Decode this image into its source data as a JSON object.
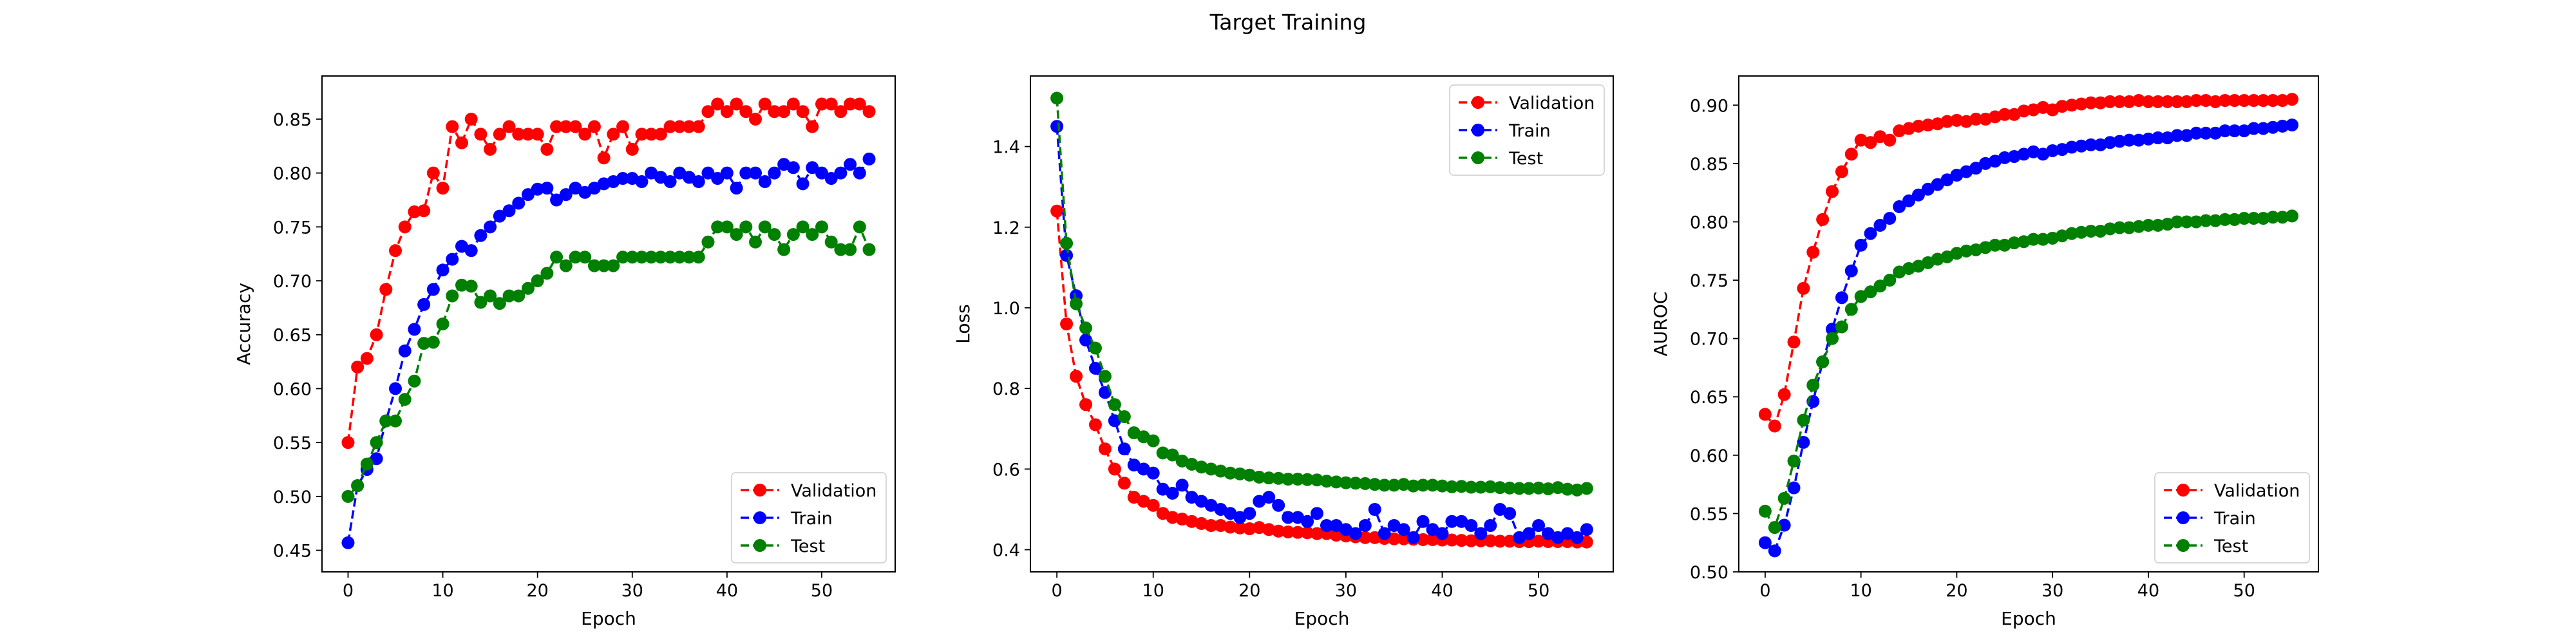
{
  "figure": {
    "title": "Target Training"
  },
  "chart_data": [
    {
      "type": "line",
      "xlabel": "Epoch",
      "ylabel": "Accuracy",
      "xlim": [
        -2.75,
        57.75
      ],
      "ylim": [
        0.43,
        0.89
      ],
      "xticks": [
        0,
        10,
        20,
        30,
        40,
        50
      ],
      "yticks": [
        0.45,
        0.5,
        0.55,
        0.6,
        0.65,
        0.7,
        0.75,
        0.8,
        0.85
      ],
      "ytick_decimals": 2,
      "legend": "lower-right",
      "series": [
        {
          "name": "Validation",
          "color": "#ff0000",
          "values": [
            0.55,
            0.62,
            0.628,
            0.65,
            0.692,
            0.728,
            0.75,
            0.764,
            0.765,
            0.8,
            0.786,
            0.843,
            0.828,
            0.85,
            0.836,
            0.822,
            0.836,
            0.843,
            0.836,
            0.836,
            0.836,
            0.822,
            0.843,
            0.843,
            0.843,
            0.836,
            0.843,
            0.814,
            0.836,
            0.843,
            0.822,
            0.836,
            0.836,
            0.836,
            0.843,
            0.843,
            0.843,
            0.843,
            0.857,
            0.864,
            0.857,
            0.864,
            0.857,
            0.85,
            0.864,
            0.857,
            0.857,
            0.864,
            0.857,
            0.843,
            0.864,
            0.864,
            0.857,
            0.864,
            0.864,
            0.857
          ]
        },
        {
          "name": "Train",
          "color": "#0000ff",
          "values": [
            0.457,
            0.51,
            0.525,
            0.535,
            0.57,
            0.6,
            0.635,
            0.655,
            0.678,
            0.692,
            0.71,
            0.72,
            0.732,
            0.728,
            0.742,
            0.75,
            0.76,
            0.765,
            0.772,
            0.78,
            0.785,
            0.786,
            0.775,
            0.78,
            0.786,
            0.782,
            0.786,
            0.79,
            0.792,
            0.795,
            0.795,
            0.792,
            0.8,
            0.796,
            0.792,
            0.8,
            0.796,
            0.792,
            0.8,
            0.795,
            0.8,
            0.786,
            0.8,
            0.8,
            0.792,
            0.8,
            0.808,
            0.805,
            0.79,
            0.805,
            0.8,
            0.795,
            0.8,
            0.808,
            0.8,
            0.813
          ]
        },
        {
          "name": "Test",
          "color": "#008000",
          "values": [
            0.5,
            0.51,
            0.53,
            0.55,
            0.57,
            0.57,
            0.59,
            0.607,
            0.642,
            0.643,
            0.66,
            0.686,
            0.696,
            0.695,
            0.68,
            0.686,
            0.679,
            0.686,
            0.686,
            0.693,
            0.7,
            0.707,
            0.722,
            0.714,
            0.722,
            0.722,
            0.714,
            0.714,
            0.714,
            0.722,
            0.722,
            0.722,
            0.722,
            0.722,
            0.722,
            0.722,
            0.722,
            0.722,
            0.736,
            0.75,
            0.75,
            0.743,
            0.75,
            0.736,
            0.75,
            0.743,
            0.729,
            0.743,
            0.75,
            0.743,
            0.75,
            0.736,
            0.729,
            0.729,
            0.75,
            0.729
          ]
        }
      ]
    },
    {
      "type": "line",
      "xlabel": "Epoch",
      "ylabel": "Loss",
      "xlim": [
        -2.75,
        57.75
      ],
      "ylim": [
        0.345,
        1.575
      ],
      "xticks": [
        0,
        10,
        20,
        30,
        40,
        50
      ],
      "yticks": [
        0.4,
        0.6,
        0.8,
        1.0,
        1.2,
        1.4
      ],
      "ytick_decimals": 1,
      "legend": "top-right",
      "series": [
        {
          "name": "Validation",
          "color": "#ff0000",
          "values": [
            1.24,
            0.96,
            0.83,
            0.76,
            0.71,
            0.65,
            0.6,
            0.565,
            0.53,
            0.52,
            0.51,
            0.49,
            0.48,
            0.476,
            0.47,
            0.465,
            0.46,
            0.46,
            0.456,
            0.454,
            0.452,
            0.455,
            0.45,
            0.446,
            0.444,
            0.443,
            0.442,
            0.44,
            0.44,
            0.436,
            0.434,
            0.432,
            0.43,
            0.43,
            0.428,
            0.427,
            0.427,
            0.426,
            0.425,
            0.425,
            0.424,
            0.424,
            0.423,
            0.422,
            0.422,
            0.422,
            0.421,
            0.421,
            0.42,
            0.42,
            0.421,
            0.42,
            0.42,
            0.42,
            0.419,
            0.419
          ]
        },
        {
          "name": "Train",
          "color": "#0000ff",
          "values": [
            1.45,
            1.13,
            1.03,
            0.92,
            0.85,
            0.79,
            0.72,
            0.65,
            0.61,
            0.6,
            0.59,
            0.55,
            0.54,
            0.56,
            0.53,
            0.52,
            0.51,
            0.5,
            0.49,
            0.48,
            0.49,
            0.52,
            0.53,
            0.51,
            0.48,
            0.48,
            0.47,
            0.49,
            0.46,
            0.46,
            0.45,
            0.44,
            0.46,
            0.5,
            0.44,
            0.46,
            0.45,
            0.43,
            0.47,
            0.45,
            0.44,
            0.47,
            0.47,
            0.46,
            0.44,
            0.46,
            0.5,
            0.49,
            0.43,
            0.44,
            0.46,
            0.44,
            0.43,
            0.44,
            0.43,
            0.45
          ]
        },
        {
          "name": "Test",
          "color": "#008000",
          "values": [
            1.52,
            1.16,
            1.01,
            0.95,
            0.9,
            0.83,
            0.76,
            0.73,
            0.69,
            0.68,
            0.67,
            0.64,
            0.635,
            0.62,
            0.612,
            0.605,
            0.6,
            0.595,
            0.59,
            0.588,
            0.585,
            0.58,
            0.578,
            0.577,
            0.575,
            0.575,
            0.574,
            0.573,
            0.57,
            0.568,
            0.566,
            0.565,
            0.564,
            0.562,
            0.56,
            0.56,
            0.562,
            0.558,
            0.56,
            0.56,
            0.558,
            0.556,
            0.557,
            0.555,
            0.555,
            0.556,
            0.554,
            0.553,
            0.552,
            0.552,
            0.553,
            0.551,
            0.554,
            0.55,
            0.548,
            0.552
          ]
        }
      ]
    },
    {
      "type": "line",
      "xlabel": "Epoch",
      "ylabel": "AUROC",
      "xlim": [
        -2.75,
        57.75
      ],
      "ylim": [
        0.5,
        0.925
      ],
      "xticks": [
        0,
        10,
        20,
        30,
        40,
        50
      ],
      "yticks": [
        0.5,
        0.55,
        0.6,
        0.65,
        0.7,
        0.75,
        0.8,
        0.85,
        0.9
      ],
      "ytick_decimals": 2,
      "legend": "lower-right",
      "series": [
        {
          "name": "Validation",
          "color": "#ff0000",
          "values": [
            0.635,
            0.625,
            0.652,
            0.697,
            0.743,
            0.774,
            0.802,
            0.826,
            0.843,
            0.858,
            0.87,
            0.868,
            0.873,
            0.87,
            0.878,
            0.88,
            0.882,
            0.883,
            0.884,
            0.886,
            0.887,
            0.886,
            0.888,
            0.888,
            0.89,
            0.892,
            0.892,
            0.895,
            0.896,
            0.898,
            0.896,
            0.899,
            0.9,
            0.901,
            0.902,
            0.902,
            0.903,
            0.903,
            0.903,
            0.904,
            0.903,
            0.903,
            0.903,
            0.903,
            0.903,
            0.904,
            0.904,
            0.903,
            0.904,
            0.904,
            0.904,
            0.904,
            0.904,
            0.904,
            0.904,
            0.905
          ]
        },
        {
          "name": "Train",
          "color": "#0000ff",
          "values": [
            0.525,
            0.518,
            0.54,
            0.572,
            0.611,
            0.646,
            0.68,
            0.708,
            0.735,
            0.758,
            0.78,
            0.79,
            0.797,
            0.803,
            0.813,
            0.818,
            0.823,
            0.828,
            0.832,
            0.836,
            0.84,
            0.843,
            0.846,
            0.85,
            0.852,
            0.855,
            0.856,
            0.858,
            0.86,
            0.858,
            0.861,
            0.862,
            0.864,
            0.865,
            0.866,
            0.866,
            0.868,
            0.869,
            0.87,
            0.87,
            0.871,
            0.872,
            0.872,
            0.874,
            0.874,
            0.876,
            0.876,
            0.876,
            0.878,
            0.878,
            0.878,
            0.88,
            0.88,
            0.881,
            0.882,
            0.883
          ]
        },
        {
          "name": "Test",
          "color": "#008000",
          "values": [
            0.552,
            0.538,
            0.563,
            0.595,
            0.63,
            0.66,
            0.68,
            0.7,
            0.71,
            0.725,
            0.736,
            0.74,
            0.745,
            0.75,
            0.757,
            0.76,
            0.762,
            0.765,
            0.768,
            0.77,
            0.773,
            0.775,
            0.776,
            0.778,
            0.78,
            0.78,
            0.782,
            0.783,
            0.785,
            0.785,
            0.786,
            0.788,
            0.79,
            0.791,
            0.792,
            0.792,
            0.794,
            0.795,
            0.795,
            0.796,
            0.797,
            0.797,
            0.798,
            0.8,
            0.8,
            0.8,
            0.801,
            0.801,
            0.802,
            0.802,
            0.803,
            0.803,
            0.803,
            0.804,
            0.804,
            0.805
          ]
        }
      ]
    }
  ]
}
